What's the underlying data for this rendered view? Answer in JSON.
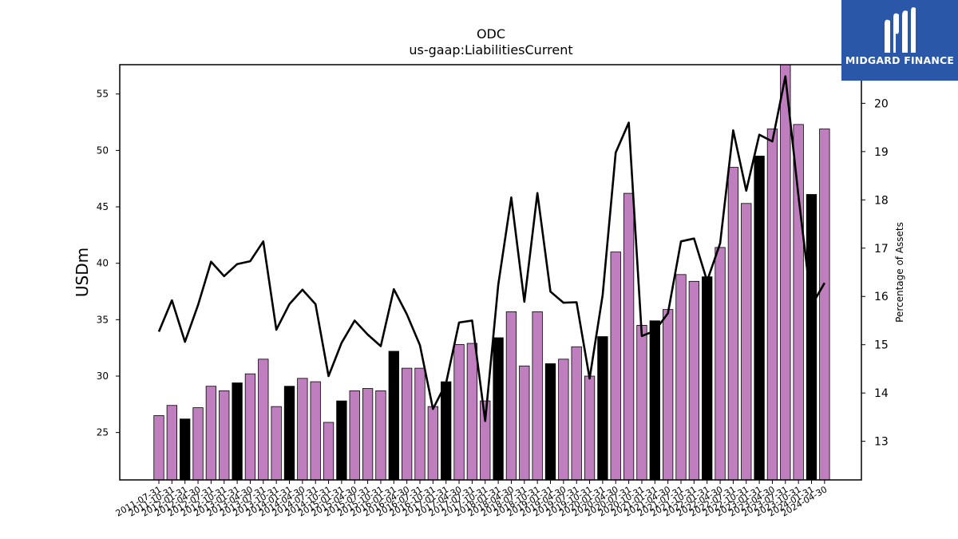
{
  "chart_data": {
    "type": "bar",
    "title": "ODC",
    "subtitle": "us-gaap:LiabilitiesCurrent",
    "ylabel": "USDm",
    "ylabel_right": "Percentage of Assets",
    "ylim": [
      20.8,
      57.6
    ],
    "ylim_right": [
      12.2,
      20.8
    ],
    "yticks": [
      25,
      30,
      35,
      40,
      45,
      50,
      55
    ],
    "yticks_right": [
      13,
      14,
      15,
      16,
      17,
      18,
      19,
      20
    ],
    "colors": {
      "bar": "#bf7fbf",
      "bar_highlight": "#000000",
      "line": "#000000"
    },
    "categories": [
      "2011-07-31",
      "2011-10-31",
      "2012-01-31",
      "2012-04-30",
      "2012-07-31",
      "2012-10-31",
      "2013-01-31",
      "2013-04-30",
      "2013-07-31",
      "2013-10-31",
      "2014-01-31",
      "2014-04-30",
      "2014-07-31",
      "2014-10-31",
      "2015-01-31",
      "2015-04-30",
      "2015-07-31",
      "2015-10-31",
      "2016-01-31",
      "2016-04-30",
      "2016-07-31",
      "2016-10-31",
      "2017-01-31",
      "2017-04-30",
      "2017-07-31",
      "2017-10-31",
      "2018-01-31",
      "2018-04-30",
      "2018-07-31",
      "2018-10-31",
      "2019-01-31",
      "2019-04-30",
      "2019-07-31",
      "2019-10-31",
      "2020-01-31",
      "2020-04-30",
      "2020-07-31",
      "2020-10-31",
      "2021-01-31",
      "2021-04-30",
      "2021-07-31",
      "2021-10-31",
      "2022-01-31",
      "2022-04-30",
      "2022-07-31",
      "2022-10-31",
      "2023-01-31",
      "2023-04-30",
      "2023-07-31",
      "2023-10-31",
      "2024-01-31",
      "2024-04-30"
    ],
    "tick_labels": [
      "2011-07-31",
      "2011-10-31",
      "2012-01-31",
      "2012-04-30",
      "2012-07-31",
      "2012-10-31",
      "2013-01-31",
      "2013-04-30",
      "2013-07-31",
      "2013-10-31",
      "2014-01-31",
      "2014-04-30",
      "2014-07-31",
      "2014-10-31",
      "2015-01-31",
      "2015-04-30",
      "2015-07-31",
      "2015-10-31",
      "2016-01-31",
      "2016-04-30",
      "2016-07-31",
      "2016-10-31",
      "2017-01-31",
      "2017-04-30",
      "2017-07-31",
      "2017-10-31",
      "2018-01-31",
      "2018-04-30",
      "2018-07-31",
      "2018-10-31",
      "2019-01-31",
      "2019-04-30",
      "2019-07-31",
      "2019-10-31",
      "2020-01-31",
      "2020-04-30",
      "2020-07-31",
      "2020-10-31",
      "2021-01-31",
      "2021-04-30",
      "2021-07-31",
      "2021-10-31",
      "2022-01-31",
      "2022-04-30",
      "2022-07-31",
      "2022-10-31",
      "2023-01-31",
      "2023-04-30",
      "2023-07-31",
      "2023-10-31",
      "2024-01-31",
      "2024-04-30"
    ],
    "series": [
      {
        "type": "bar",
        "values": [
          26.5,
          27.4,
          26.2,
          27.2,
          29.1,
          28.7,
          29.4,
          30.2,
          31.5,
          27.3,
          29.1,
          29.8,
          29.5,
          25.9,
          27.8,
          28.7,
          28.9,
          28.7,
          32.2,
          30.7,
          30.7,
          27.3,
          29.5,
          32.8,
          32.9,
          27.8,
          33.4,
          35.7,
          30.9,
          35.7,
          31.1,
          31.5,
          32.6,
          30.0,
          33.5,
          41.0,
          46.2,
          34.5,
          34.9,
          35.9,
          39.0,
          38.4,
          38.8,
          41.4,
          48.5,
          45.3,
          49.5,
          51.9,
          57.6,
          52.3,
          46.1,
          51.9
        ],
        "highlight": [
          false,
          false,
          true,
          false,
          false,
          false,
          true,
          false,
          false,
          false,
          true,
          false,
          false,
          false,
          true,
          false,
          false,
          false,
          true,
          false,
          false,
          false,
          true,
          false,
          false,
          false,
          true,
          false,
          false,
          false,
          true,
          false,
          false,
          false,
          true,
          false,
          false,
          false,
          true,
          false,
          false,
          false,
          true,
          false,
          false,
          false,
          true,
          false,
          false,
          false,
          true,
          false
        ]
      },
      {
        "type": "line",
        "axis": "right",
        "values": [
          15.27,
          15.92,
          15.06,
          15.82,
          16.72,
          16.42,
          16.67,
          16.73,
          17.14,
          15.31,
          15.84,
          16.14,
          15.84,
          14.35,
          15.04,
          15.5,
          15.21,
          14.97,
          16.15,
          15.63,
          14.99,
          13.67,
          14.2,
          15.46,
          15.5,
          13.42,
          16.24,
          18.05,
          15.89,
          18.14,
          16.1,
          15.87,
          15.88,
          14.3,
          16.03,
          18.98,
          19.6,
          15.18,
          15.29,
          15.65,
          17.14,
          17.2,
          16.32,
          17.1,
          19.44,
          18.19,
          19.35,
          19.21,
          20.56,
          18.08,
          15.81,
          16.28
        ]
      }
    ]
  },
  "logo": {
    "text": "MIDGARD FINANCE",
    "icon": "midgard-logo-icon"
  }
}
